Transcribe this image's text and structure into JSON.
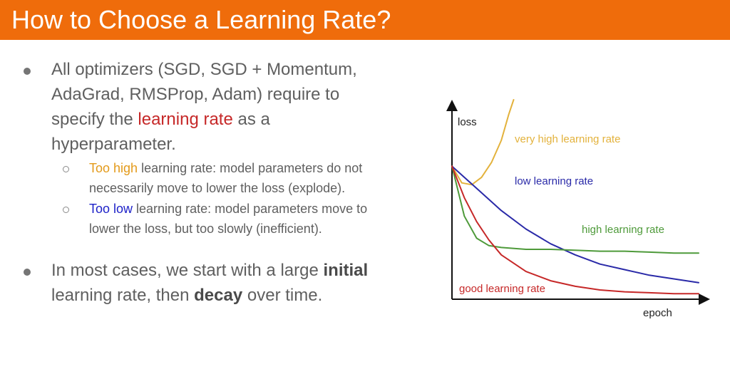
{
  "title": "How to Choose a Learning Rate?",
  "bullets": {
    "b1": {
      "line1": "All optimizers (SGD, SGD + Momentum,",
      "line2": "AdaGrad, RMSProp, Adam) require to",
      "line3_pre": "specify the ",
      "line3_hl": "learning rate",
      "line3_post": " as a",
      "line4": "hyperparameter."
    },
    "s1": {
      "hl": "Too high",
      "rest1": " learning rate: model parameters do not",
      "line2": "necessarily move to lower the loss (explode)."
    },
    "s2": {
      "hl": "Too low",
      "rest1": " learning rate: model parameters move to",
      "line2": "lower the loss, but too slowly (inefficient)."
    },
    "b2": {
      "pre": "In most cases, we start with a large ",
      "bold1": "initial",
      "line2_pre": "learning rate, then ",
      "bold2": "decay",
      "line2_post": " over time."
    }
  },
  "colors": {
    "header": "#ef6c0b",
    "red": "#c62828",
    "orange": "#e39a1a",
    "blue": "#1e22c8",
    "green": "#4e9a3a"
  },
  "chart_data": {
    "type": "line",
    "xlabel": "epoch",
    "ylabel": "loss",
    "x": [
      0,
      0.05,
      0.1,
      0.15,
      0.2,
      0.3,
      0.4,
      0.5,
      0.6,
      0.7,
      0.8,
      0.9,
      1.0
    ],
    "series": [
      {
        "name": "very high learning rate",
        "color": "#e3b23c",
        "x": [
          0,
          0.04,
          0.08,
          0.12,
          0.16,
          0.2,
          0.23,
          0.25
        ],
        "values": [
          0.72,
          0.63,
          0.62,
          0.66,
          0.74,
          0.86,
          1.0,
          1.08
        ]
      },
      {
        "name": "low learning rate",
        "color": "#2a2aa8",
        "values": [
          0.72,
          0.66,
          0.6,
          0.54,
          0.48,
          0.38,
          0.3,
          0.24,
          0.19,
          0.16,
          0.13,
          0.11,
          0.09
        ]
      },
      {
        "name": "high learning rate",
        "color": "#4e9a3a",
        "values": [
          0.72,
          0.45,
          0.33,
          0.29,
          0.28,
          0.27,
          0.27,
          0.265,
          0.26,
          0.26,
          0.255,
          0.25,
          0.25
        ]
      },
      {
        "name": "good learning rate",
        "color": "#c62828",
        "values": [
          0.72,
          0.55,
          0.42,
          0.32,
          0.24,
          0.15,
          0.1,
          0.07,
          0.05,
          0.04,
          0.035,
          0.03,
          0.03
        ]
      }
    ],
    "grid": false,
    "legend": "inline labels"
  }
}
